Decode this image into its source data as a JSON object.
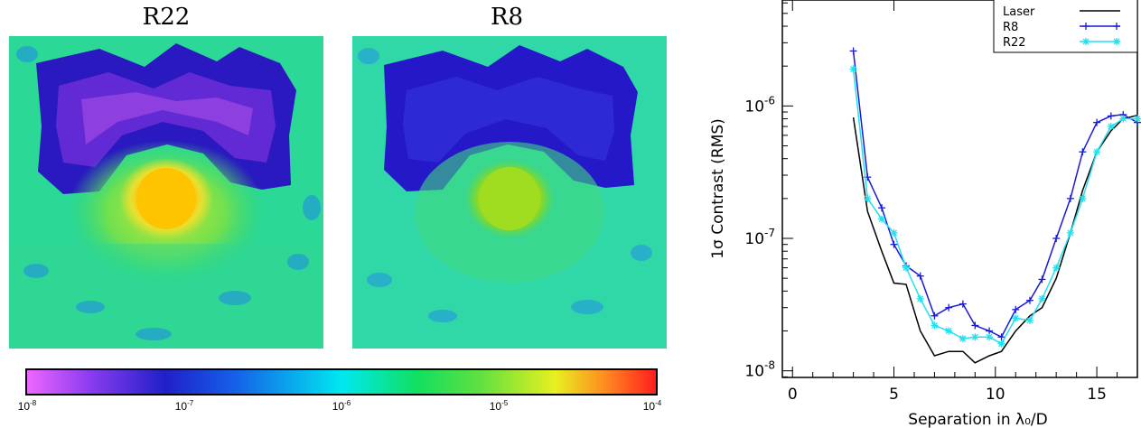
{
  "panels": {
    "left_title": "R22",
    "right_title": "R8"
  },
  "colorbar": {
    "ticks": [
      {
        "base": "10",
        "exp": "-8"
      },
      {
        "base": "10",
        "exp": "-7"
      },
      {
        "base": "10",
        "exp": "-6"
      },
      {
        "base": "10",
        "exp": "-5"
      },
      {
        "base": "10",
        "exp": "-4"
      }
    ],
    "colors": [
      "#ee66ff",
      "#8a3cf0",
      "#2020c8",
      "#1560e8",
      "#00e8f0",
      "#10e060",
      "#60e040",
      "#e8f020",
      "#ff8a20",
      "#ff1e1e"
    ]
  },
  "chart_data": {
    "type": "line",
    "xlabel": "Separation in λ₀/D",
    "ylabel": "1σ Contrast (RMS)",
    "xlim": [
      -0.5,
      17
    ],
    "ylim_log10": [
      -8.05,
      -5.2
    ],
    "yscale": "log",
    "xticks": [
      "0",
      "5",
      "10",
      "15"
    ],
    "yticks": [
      {
        "base": "10",
        "exp": "-8",
        "log": -8
      },
      {
        "base": "10",
        "exp": "-7",
        "log": -7
      },
      {
        "base": "10",
        "exp": "-6",
        "log": -6
      }
    ],
    "legend_position": "top-right",
    "series": [
      {
        "name": "Laser",
        "color": "#000000",
        "marker": "none",
        "x": [
          3.0,
          3.7,
          4.4,
          5.0,
          5.6,
          6.3,
          7.0,
          7.7,
          8.4,
          9.0,
          9.7,
          10.3,
          11.0,
          11.7,
          12.3,
          13.0,
          13.7,
          14.3,
          15.0,
          15.7,
          16.3,
          17.0
        ],
        "y": [
          8.2e-07,
          1.6e-07,
          8e-08,
          4.6e-08,
          4.5e-08,
          2e-08,
          1.3e-08,
          1.4e-08,
          1.4e-08,
          1.15e-08,
          1.3e-08,
          1.4e-08,
          2e-08,
          2.6e-08,
          3e-08,
          5e-08,
          1.1e-07,
          2.3e-07,
          4.5e-07,
          6.5e-07,
          8e-07,
          8.5e-07
        ]
      },
      {
        "name": "R8",
        "color": "#1a1ad6",
        "marker": "+",
        "x": [
          3.0,
          3.7,
          4.4,
          5.0,
          5.6,
          6.3,
          7.0,
          7.7,
          8.4,
          9.0,
          9.7,
          10.3,
          11.0,
          11.7,
          12.3,
          13.0,
          13.7,
          14.3,
          15.0,
          15.7,
          16.3,
          17.0
        ],
        "y": [
          2.6e-06,
          2.9e-07,
          1.7e-07,
          9e-08,
          6.2e-08,
          5.2e-08,
          2.6e-08,
          3e-08,
          3.2e-08,
          2.2e-08,
          2e-08,
          1.8e-08,
          2.9e-08,
          3.4e-08,
          4.9e-08,
          1e-07,
          2e-07,
          4.5e-07,
          7.5e-07,
          8.4e-07,
          8.6e-07,
          7.5e-07
        ]
      },
      {
        "name": "R22",
        "color": "#22e0ee",
        "marker": "*",
        "x": [
          3.0,
          3.7,
          4.4,
          5.0,
          5.6,
          6.3,
          7.0,
          7.7,
          8.4,
          9.0,
          9.7,
          10.3,
          11.0,
          11.7,
          12.3,
          13.0,
          13.7,
          14.3,
          15.0,
          15.7,
          16.3,
          17.0
        ],
        "y": [
          1.9e-06,
          2e-07,
          1.4e-07,
          1.1e-07,
          6e-08,
          3.5e-08,
          2.2e-08,
          2e-08,
          1.75e-08,
          1.8e-08,
          1.8e-08,
          1.6e-08,
          2.5e-08,
          2.4e-08,
          3.5e-08,
          6e-08,
          1.1e-07,
          2e-07,
          4.5e-07,
          7e-07,
          8e-07,
          8e-07
        ]
      }
    ]
  }
}
